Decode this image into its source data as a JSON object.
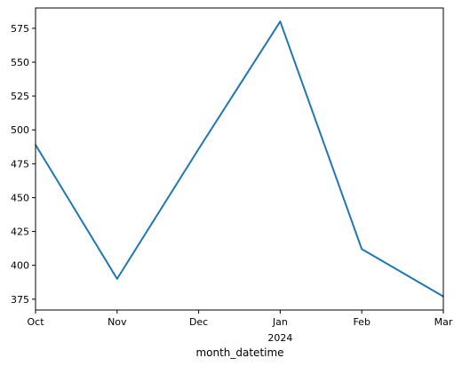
{
  "chart_data": {
    "type": "line",
    "xlabel": "month_datetime",
    "ylabel": "",
    "x": [
      "Oct",
      "Nov",
      "Dec",
      "Jan",
      "Feb",
      "Mar"
    ],
    "x_sublabels": [
      "",
      "",
      "",
      "2024",
      "",
      ""
    ],
    "series": [
      {
        "values": [
          489,
          390,
          486,
          580,
          412,
          377
        ],
        "color": "#1f77b4"
      }
    ],
    "ylim": [
      367,
      590
    ],
    "yticks": [
      375,
      400,
      425,
      450,
      475,
      500,
      525,
      550,
      575
    ],
    "grid": false,
    "legend": "none"
  }
}
